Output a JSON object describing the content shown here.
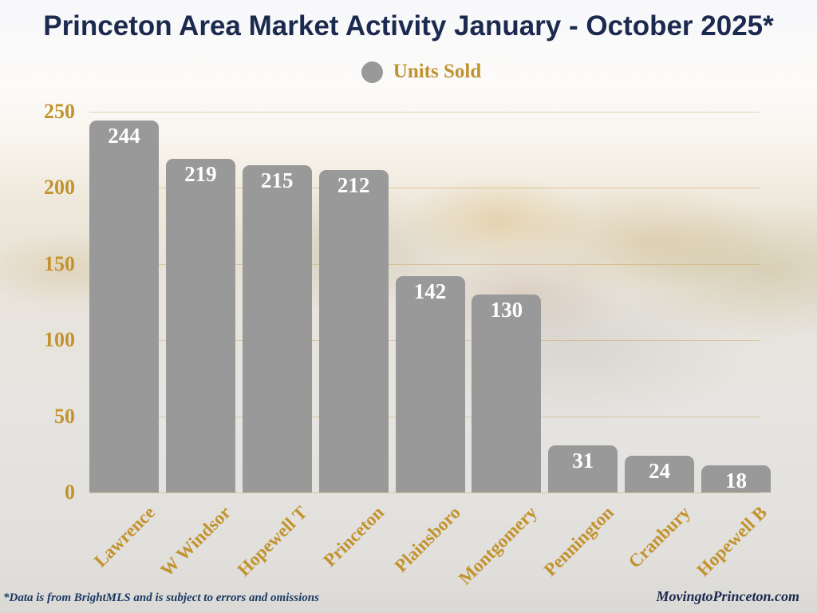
{
  "title": "Princeton Area Market Activity January - October 2025*",
  "legend": {
    "label": "Units Sold",
    "marker": "circle-icon",
    "marker_color": "#999999"
  },
  "footer": {
    "left": "*Data is from BrightMLS and is subject to errors and omissions",
    "right": "MovingtoPrinceton.com"
  },
  "colors": {
    "title_navy": "#1b2a4e",
    "gold": "#c2932f",
    "bar_gray": "#999999",
    "value_label": "#ffffff",
    "gridline": "rgba(191,146,56,0.38)"
  },
  "chart_data": {
    "type": "bar",
    "title": "Princeton Area Market Activity January - October 2025*",
    "series_name": "Units Sold",
    "categories": [
      "Lawrence",
      "W Windsor",
      "Hopewell T",
      "Princeton",
      "Plainsboro",
      "Montgomery",
      "Pennington",
      "Cranbury",
      "Hopewell B"
    ],
    "values": [
      244,
      219,
      215,
      212,
      142,
      130,
      31,
      24,
      18
    ],
    "xlabel": "",
    "ylabel": "",
    "ylim": [
      0,
      250
    ],
    "yticks": [
      0,
      50,
      100,
      150,
      200,
      250
    ],
    "grid": true,
    "legend_position": "top-center",
    "value_labels": "inside-top",
    "bar_color": "#999999"
  }
}
